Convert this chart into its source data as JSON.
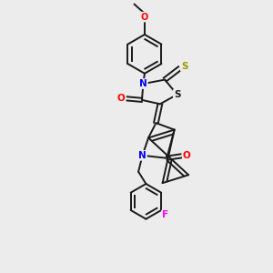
{
  "background_color": "#ececec",
  "bond_color": "#1a1a1a",
  "atom_colors": {
    "N": "#0000ff",
    "O": "#ff0000",
    "S_yellow": "#999900",
    "S_black": "#1a1a1a",
    "F": "#ff00ff",
    "C": "#1a1a1a"
  },
  "figsize": [
    3.0,
    3.0
  ],
  "dpi": 100
}
